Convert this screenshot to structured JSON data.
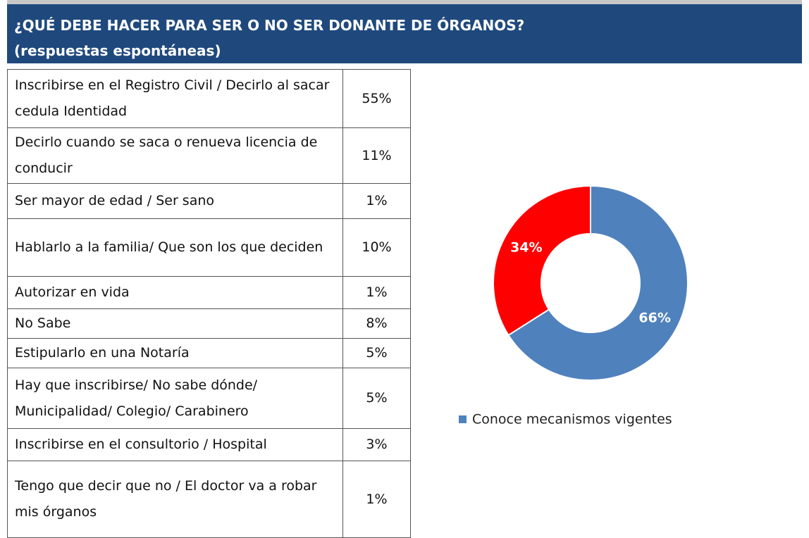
{
  "header": {
    "title": "¿QUÉ DEBE HACER PARA SER O NO SER DONANTE DE ÓRGANOS?",
    "subtitle": "(respuestas espontáneas)"
  },
  "table": {
    "rows": [
      [
        "Inscribirse en el Registro Civil / Decirlo al sacar cedula Identidad",
        "55%"
      ],
      [
        "Decirlo cuando se saca o renueva licencia de conducir",
        "11%"
      ],
      [
        "Ser mayor de edad / Ser sano",
        "1%"
      ],
      [
        "Hablarlo a la familia/ Que son los que deciden",
        "10%"
      ],
      [
        "Autorizar en vida",
        "1%"
      ],
      [
        "No Sabe",
        "8%"
      ],
      [
        "Estipularlo en una Notaría",
        "5%"
      ],
      [
        "Hay que inscribirse/ No sabe dónde/ Municipalidad/ Colegio/ Carabinero",
        "5%"
      ],
      [
        "Inscribirse en el consultorio / Hospital",
        "3%"
      ],
      [
        "Tengo que decir que no / El doctor va a robar mis órganos",
        "1%"
      ]
    ]
  },
  "chart_data": {
    "type": "donut",
    "categories": [
      "Conoce mecanismos vigentes",
      null
    ],
    "values": [
      66,
      34
    ],
    "value_labels": [
      "66%",
      "34%"
    ],
    "colors": [
      "#4f81bd",
      "#ff0000"
    ],
    "legend": "bottom"
  }
}
